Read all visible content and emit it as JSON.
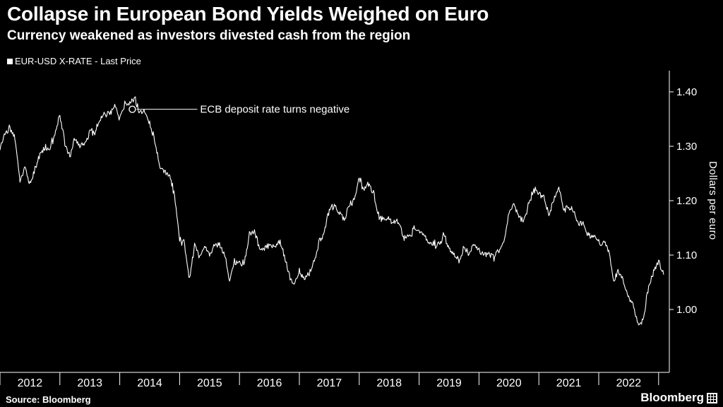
{
  "header": {
    "title": "Collapse in European Bond Yields Weighed on Euro",
    "subtitle": "Currency weakened as investors divested cash from the region"
  },
  "legend": {
    "label": "EUR-USD X-RATE - Last Price"
  },
  "annotation": {
    "text": "ECB deposit rate turns negative",
    "x_year": 2014.21,
    "y_value": 1.368
  },
  "y_axis": {
    "label": "Dollars per euro",
    "ticks": [
      1.4,
      1.3,
      1.2,
      1.1,
      1.0
    ]
  },
  "x_axis": {
    "labels": [
      "2012",
      "2013",
      "2014",
      "2015",
      "2016",
      "2017",
      "2018",
      "2019",
      "2020",
      "2021",
      "2022"
    ]
  },
  "footer": {
    "source": "Source: Bloomberg",
    "brand": "Bloomberg"
  },
  "colors": {
    "background": "#000000",
    "line": "#ffffff",
    "text": "#ffffff",
    "axis": "#ffffff"
  },
  "chart_data": {
    "type": "line",
    "title": "Collapse in European Bond Yields Weighed on Euro",
    "subtitle": "Currency weakened as investors divested cash from the region",
    "xlabel": "",
    "ylabel": "Dollars per euro",
    "ylim": [
      0.88,
      1.44
    ],
    "xlim": [
      2012.0,
      2023.25
    ],
    "grid": false,
    "legend_position": "top-left",
    "x_start_year": 2012,
    "x_interval": "monthly",
    "x_end": "2023-02",
    "series": [
      {
        "name": "EUR-USD X-RATE - Last Price",
        "values": [
          1.293,
          1.322,
          1.334,
          1.316,
          1.236,
          1.266,
          1.229,
          1.257,
          1.286,
          1.296,
          1.299,
          1.319,
          1.358,
          1.305,
          1.282,
          1.317,
          1.3,
          1.301,
          1.33,
          1.322,
          1.353,
          1.358,
          1.359,
          1.374,
          1.349,
          1.38,
          1.377,
          1.387,
          1.363,
          1.369,
          1.339,
          1.313,
          1.263,
          1.253,
          1.245,
          1.21,
          1.129,
          1.119,
          1.055,
          1.122,
          1.098,
          1.115,
          1.098,
          1.121,
          1.118,
          1.1,
          1.056,
          1.086,
          1.083,
          1.087,
          1.138,
          1.145,
          1.113,
          1.111,
          1.117,
          1.116,
          1.124,
          1.098,
          1.059,
          1.045,
          1.07,
          1.058,
          1.065,
          1.089,
          1.124,
          1.143,
          1.184,
          1.191,
          1.181,
          1.165,
          1.19,
          1.2,
          1.241,
          1.219,
          1.232,
          1.208,
          1.169,
          1.168,
          1.169,
          1.16,
          1.16,
          1.131,
          1.132,
          1.147,
          1.145,
          1.137,
          1.122,
          1.121,
          1.117,
          1.137,
          1.108,
          1.099,
          1.09,
          1.115,
          1.102,
          1.121,
          1.109,
          1.103,
          1.103,
          1.095,
          1.11,
          1.123,
          1.178,
          1.194,
          1.172,
          1.165,
          1.193,
          1.222,
          1.213,
          1.209,
          1.173,
          1.202,
          1.223,
          1.186,
          1.187,
          1.181,
          1.158,
          1.156,
          1.134,
          1.137,
          1.123,
          1.122,
          1.107,
          1.054,
          1.073,
          1.048,
          1.022,
          1.005,
          0.968,
          0.985,
          1.041,
          1.07,
          1.089,
          1.064
        ]
      }
    ]
  }
}
